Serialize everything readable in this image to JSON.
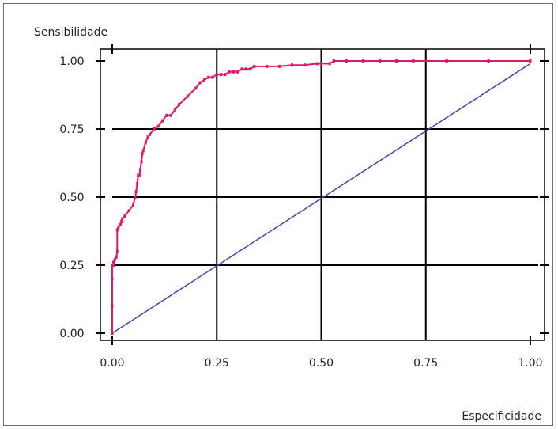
{
  "chart_data": {
    "type": "line",
    "title": "",
    "xlabel": "Especificidade",
    "ylabel": "Sensibilidade",
    "xlim": [
      0,
      1
    ],
    "ylim": [
      0,
      1
    ],
    "x_ticks": [
      "0.00",
      "0.25",
      "0.50",
      "0.75",
      "1.00"
    ],
    "y_ticks": [
      "0.00",
      "0.25",
      "0.50",
      "0.75",
      "1.00"
    ],
    "grid": true,
    "series": [
      {
        "color": "#e0186a",
        "markers": true,
        "x": [
          0.0,
          0.0,
          0.0,
          0.0,
          0.003,
          0.003,
          0.006,
          0.01,
          0.012,
          0.012,
          0.015,
          0.02,
          0.022,
          0.024,
          0.024,
          0.03,
          0.04,
          0.05,
          0.055,
          0.057,
          0.06,
          0.062,
          0.065,
          0.067,
          0.07,
          0.072,
          0.074,
          0.08,
          0.085,
          0.09,
          0.1,
          0.11,
          0.12,
          0.13,
          0.14,
          0.15,
          0.16,
          0.18,
          0.2,
          0.21,
          0.22,
          0.23,
          0.24,
          0.25,
          0.26,
          0.27,
          0.28,
          0.29,
          0.3,
          0.31,
          0.32,
          0.33,
          0.34,
          0.37,
          0.4,
          0.43,
          0.46,
          0.49,
          0.5,
          0.52,
          0.53,
          0.56,
          0.6,
          0.64,
          0.68,
          0.72,
          0.8,
          0.9,
          1.0
        ],
        "y": [
          0.0,
          0.1,
          0.2,
          0.25,
          0.25,
          0.26,
          0.27,
          0.28,
          0.3,
          0.38,
          0.39,
          0.4,
          0.41,
          0.41,
          0.42,
          0.43,
          0.45,
          0.47,
          0.5,
          0.52,
          0.55,
          0.58,
          0.58,
          0.6,
          0.63,
          0.66,
          0.67,
          0.7,
          0.72,
          0.73,
          0.75,
          0.76,
          0.78,
          0.8,
          0.8,
          0.82,
          0.84,
          0.87,
          0.9,
          0.92,
          0.93,
          0.94,
          0.94,
          0.95,
          0.95,
          0.95,
          0.96,
          0.96,
          0.96,
          0.97,
          0.97,
          0.97,
          0.98,
          0.98,
          0.98,
          0.985,
          0.985,
          0.99,
          0.99,
          0.99,
          1.0,
          1.0,
          1.0,
          1.0,
          1.0,
          1.0,
          1.0,
          1.0,
          1.0
        ]
      },
      {
        "color": "#3d4aa8",
        "markers": false,
        "x": [
          0.0,
          1.0
        ],
        "y": [
          0.0,
          0.99
        ]
      }
    ]
  }
}
